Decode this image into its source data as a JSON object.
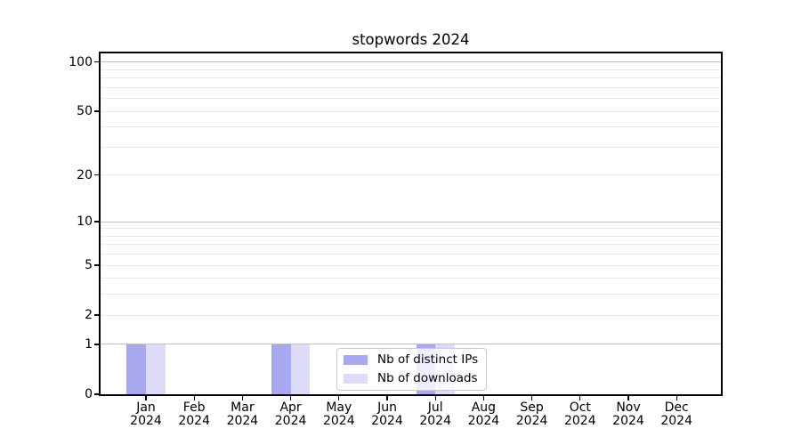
{
  "chart_data": {
    "type": "bar",
    "title": "stopwords 2024",
    "categories": [
      "Jan",
      "Feb",
      "Mar",
      "Apr",
      "May",
      "Jun",
      "Jul",
      "Aug",
      "Sep",
      "Oct",
      "Nov",
      "Dec"
    ],
    "year_label": "2024",
    "series": [
      {
        "name": "Nb of distinct IPs",
        "color": "#a8a8f0",
        "values": [
          1,
          0,
          0,
          1,
          0,
          0,
          1,
          0,
          0,
          0,
          0,
          0
        ]
      },
      {
        "name": "Nb of downloads",
        "color": "#dcdcf8",
        "values": [
          1,
          0,
          0,
          1,
          0,
          0,
          1,
          0,
          0,
          0,
          0,
          0
        ]
      }
    ],
    "yscale": "log1p",
    "ylim": [
      0,
      113
    ],
    "ytick_values": [
      0,
      1,
      2,
      5,
      10,
      20,
      50,
      100
    ],
    "major_grid_values": [
      1,
      10,
      100
    ],
    "minor_grid_values": [
      2,
      3,
      4,
      5,
      6,
      7,
      8,
      9,
      20,
      30,
      40,
      50,
      60,
      70,
      80,
      90
    ],
    "grid_color_major": "#c0c0c0",
    "grid_color_minor": "#e9e9e9",
    "legend_position": "lower center",
    "xlabel": "",
    "ylabel": ""
  }
}
